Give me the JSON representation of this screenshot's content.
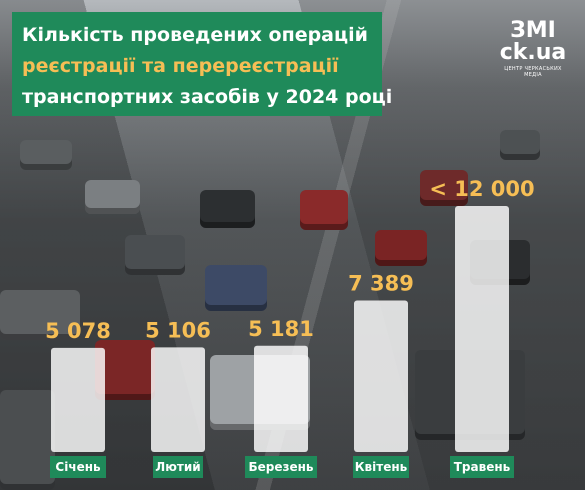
{
  "header": {
    "title_line1": "Кількість проведених операцій",
    "title_line2": "реєстрації та перереєстрації",
    "title_line3": "транспортних засобів у 2024 році"
  },
  "logo": {
    "main": "ЗМІ ck.ua",
    "sub": "ЦЕНТР ЧЕРКАСЬКИХ МЕДІА"
  },
  "colors": {
    "accent": "#1f8a5a",
    "value": "#f6be55",
    "bar": "#ffffff"
  },
  "chart_data": {
    "type": "bar",
    "categories": [
      "Січень",
      "Лютий",
      "Березень",
      "Квітень",
      "Травень"
    ],
    "values": [
      5078,
      5106,
      5181,
      7389,
      12000
    ],
    "value_labels": [
      "5 078",
      "5 106",
      "5 181",
      "7 389",
      "< 12 000"
    ],
    "title": "Кількість проведених операцій реєстрації та перереєстрації транспортних засобів у 2024 році"
  }
}
